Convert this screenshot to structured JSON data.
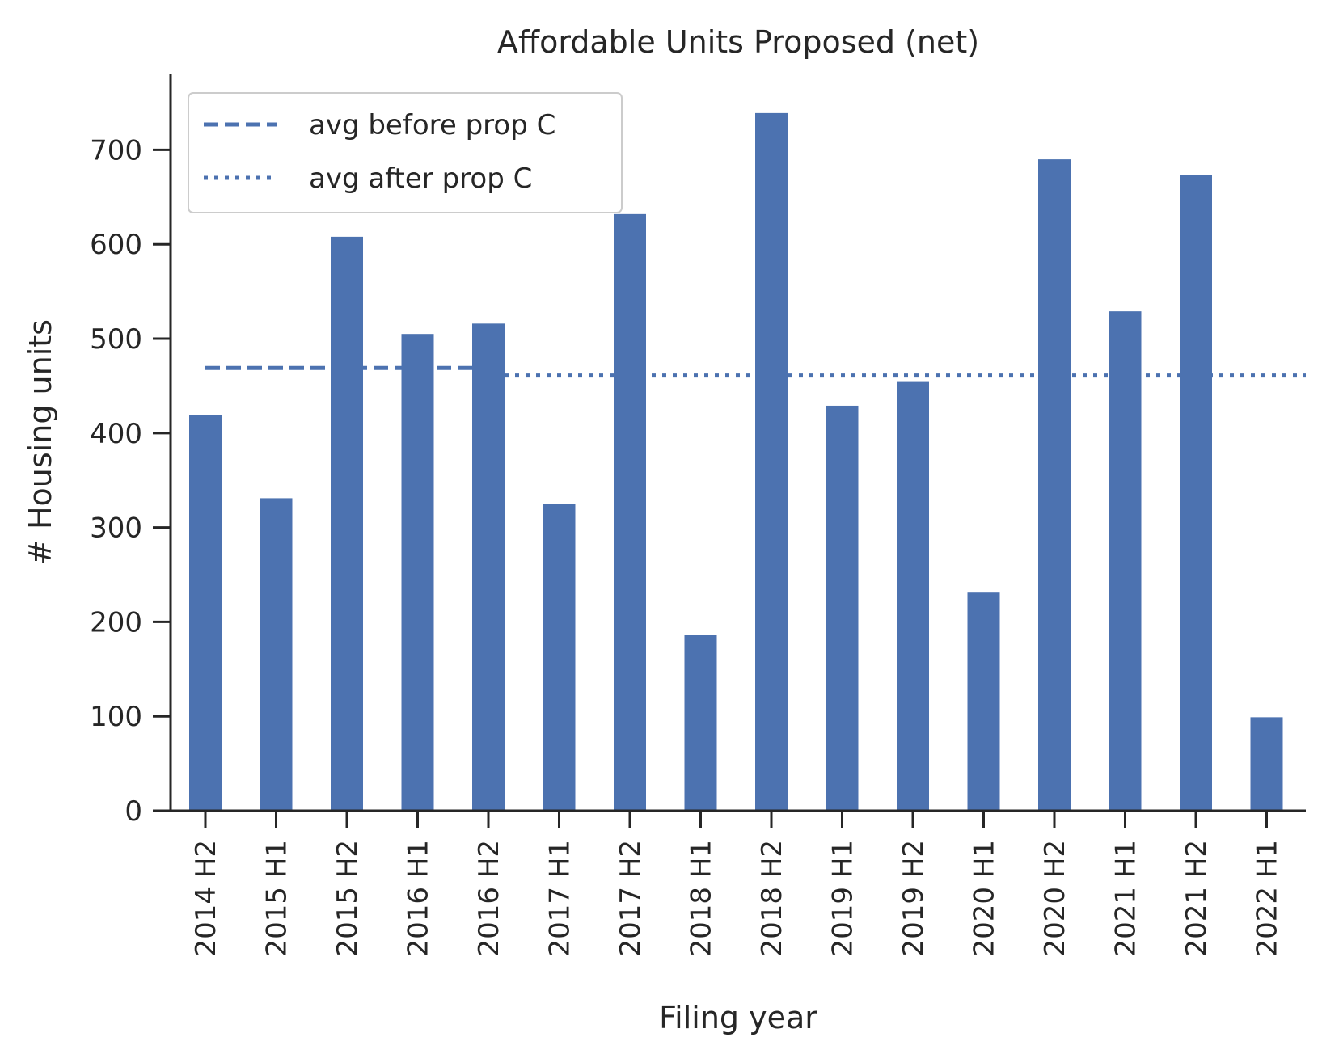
{
  "chart_data": {
    "type": "bar",
    "title": "Affordable Units Proposed (net)",
    "xlabel": "Filing year",
    "ylabel": "# Housing units",
    "categories": [
      "2014 H2",
      "2015 H1",
      "2015 H2",
      "2016 H1",
      "2016 H2",
      "2017 H1",
      "2017 H2",
      "2018 H1",
      "2018 H2",
      "2019 H1",
      "2019 H2",
      "2020 H1",
      "2020 H2",
      "2021 H1",
      "2021 H2",
      "2022 H1"
    ],
    "values": [
      419,
      331,
      608,
      505,
      516,
      325,
      632,
      186,
      739,
      429,
      455,
      231,
      690,
      529,
      673,
      99
    ],
    "ylim": [
      0,
      780
    ],
    "yticks": [
      0,
      100,
      200,
      300,
      400,
      500,
      600,
      700
    ],
    "bar_color": "#4c72b0",
    "reference_lines": [
      {
        "label": "avg before prop C",
        "style": "dashed",
        "value": 469,
        "from_index": 0,
        "to_index": 4
      },
      {
        "label": "avg after prop C",
        "style": "dotted",
        "value": 461,
        "from_index": 4,
        "to_index": 15
      }
    ],
    "legend_position": "top-left",
    "grid": false
  }
}
